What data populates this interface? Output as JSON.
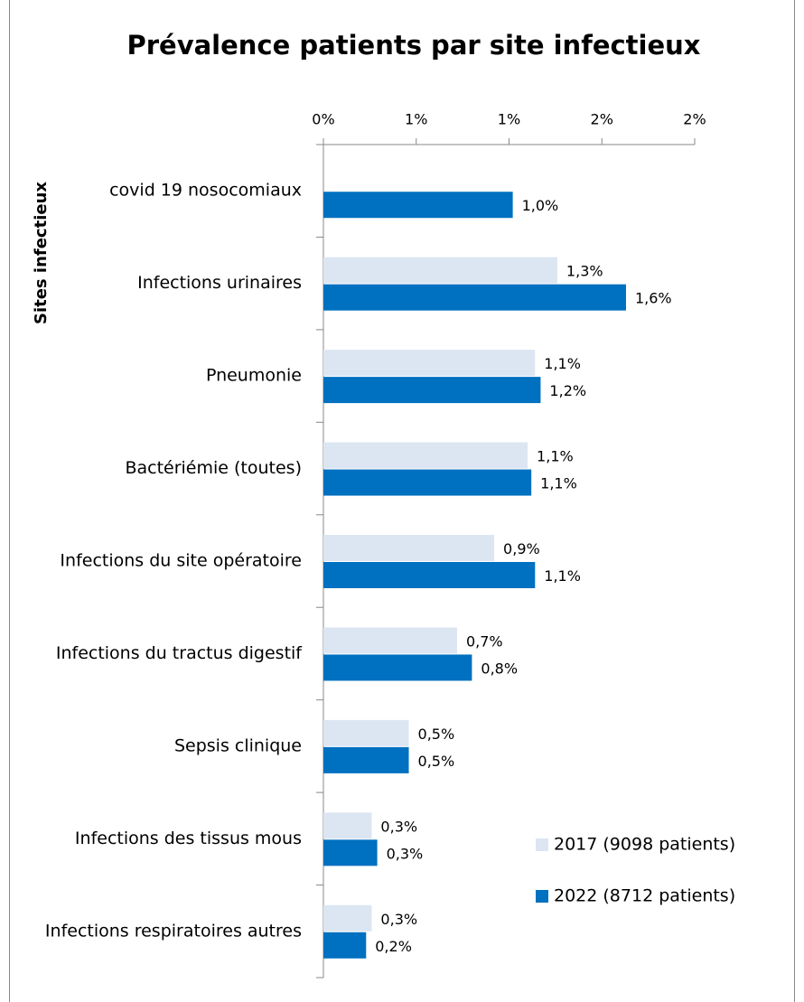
{
  "chart_data": {
    "type": "bar",
    "orientation": "horizontal",
    "title": "Prévalence patients par site infectieux",
    "y_label": "Sites infectieux",
    "categories": [
      "covid 19 nosocomiaux",
      "Infections urinaires",
      "Pneumonie",
      "Bactériémie (toutes)",
      "Infections du site opératoire",
      "Infections du tractus digestif",
      "Sepsis clinique",
      "Infections des tissus mous",
      "Infections respiratoires autres"
    ],
    "series": [
      {
        "name": "2017 (9098 patients)",
        "color": "#dce6f2",
        "values": [
          null,
          1.26,
          1.14,
          1.1,
          0.92,
          0.72,
          0.46,
          0.26,
          0.26
        ],
        "value_labels": [
          null,
          "1,3%",
          "1,1%",
          "1,1%",
          "0,9%",
          "0,7%",
          "0,5%",
          "0,3%",
          "0,3%"
        ]
      },
      {
        "name": "2022 (8712 patients)",
        "color": "#0070c0",
        "values": [
          1.02,
          1.63,
          1.17,
          1.12,
          1.14,
          0.8,
          0.46,
          0.29,
          0.23
        ],
        "value_labels": [
          "1,0%",
          "1,6%",
          "1,2%",
          "1,1%",
          "1,1%",
          "0,8%",
          "0,5%",
          "0,3%",
          "0,2%"
        ]
      }
    ],
    "xlim": [
      0,
      2
    ],
    "xticks": [
      {
        "value": 0,
        "label": "0%"
      },
      {
        "value": 0.5,
        "label": "1%"
      },
      {
        "value": 1,
        "label": "1%"
      },
      {
        "value": 1.5,
        "label": "2%"
      },
      {
        "value": 2,
        "label": "2%"
      }
    ],
    "axis_position": "top",
    "grid": false,
    "legend": "lower right"
  }
}
